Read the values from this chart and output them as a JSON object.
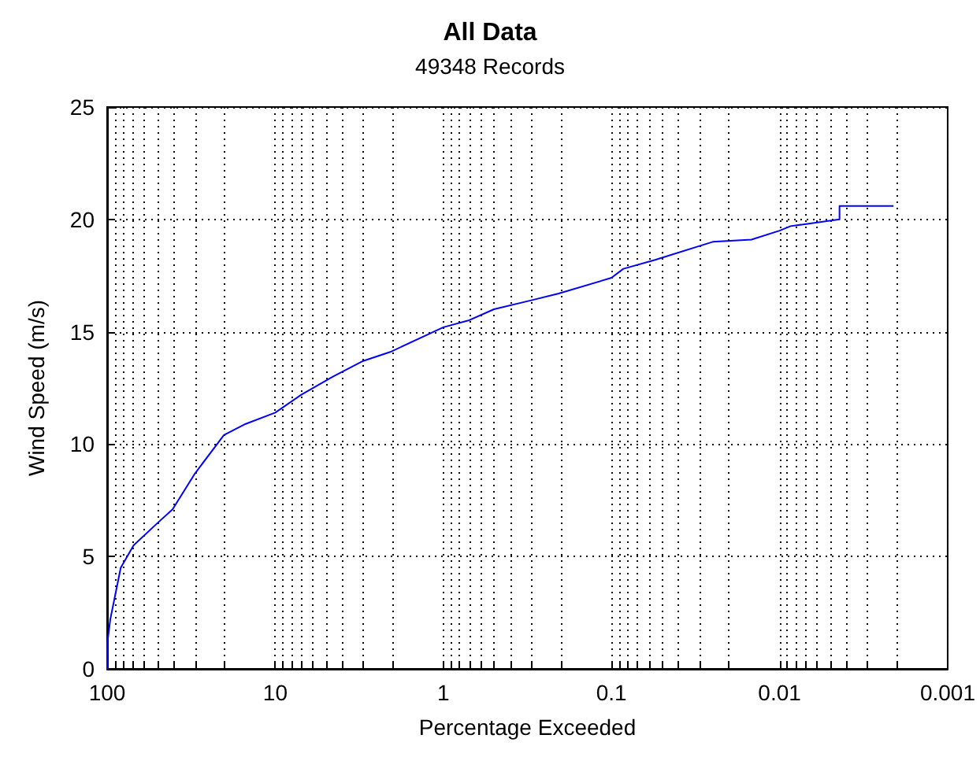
{
  "chart_data": {
    "type": "line",
    "title": "All Data",
    "subtitle": "49348 Records",
    "xlabel": "Percentage Exceeded",
    "ylabel": "Wind Speed (m/s)",
    "log": "x",
    "grid": true,
    "marker": "none",
    "line_style": "solid",
    "xlim": [
      100,
      0.001
    ],
    "ylim": [
      0,
      25
    ],
    "yticks": [
      0,
      5,
      10,
      15,
      20,
      25
    ],
    "xticks": [
      {
        "value": 100,
        "label": "100"
      },
      {
        "value": 90,
        "label": null
      },
      {
        "value": 80,
        "label": null
      },
      {
        "value": 70,
        "label": null
      },
      {
        "value": 60,
        "label": null
      },
      {
        "value": 50,
        "label": null
      },
      {
        "value": 40,
        "label": null
      },
      {
        "value": 30,
        "label": null
      },
      {
        "value": 20,
        "label": null
      },
      {
        "value": 10,
        "label": "10"
      },
      {
        "value": 9,
        "label": null
      },
      {
        "value": 8,
        "label": null
      },
      {
        "value": 7,
        "label": null
      },
      {
        "value": 6,
        "label": null
      },
      {
        "value": 5,
        "label": null
      },
      {
        "value": 4,
        "label": null
      },
      {
        "value": 3,
        "label": null
      },
      {
        "value": 2,
        "label": null
      },
      {
        "value": 1,
        "label": "1"
      },
      {
        "value": 0.9,
        "label": null
      },
      {
        "value": 0.8,
        "label": null
      },
      {
        "value": 0.7,
        "label": null
      },
      {
        "value": 0.6,
        "label": null
      },
      {
        "value": 0.5,
        "label": null
      },
      {
        "value": 0.4,
        "label": null
      },
      {
        "value": 0.3,
        "label": null
      },
      {
        "value": 0.2,
        "label": null
      },
      {
        "value": 0.1,
        "label": "0.1"
      },
      {
        "value": 0.09,
        "label": null
      },
      {
        "value": 0.08,
        "label": null
      },
      {
        "value": 0.07,
        "label": null
      },
      {
        "value": 0.06,
        "label": null
      },
      {
        "value": 0.05,
        "label": null
      },
      {
        "value": 0.04,
        "label": null
      },
      {
        "value": 0.03,
        "label": null
      },
      {
        "value": 0.02,
        "label": null
      },
      {
        "value": 0.01,
        "label": "0.01"
      },
      {
        "value": 0.009,
        "label": null
      },
      {
        "value": 0.008,
        "label": null
      },
      {
        "value": 0.007,
        "label": null
      },
      {
        "value": 0.006,
        "label": null
      },
      {
        "value": 0.005,
        "label": null
      },
      {
        "value": 0.004,
        "label": null
      },
      {
        "value": 0.003,
        "label": null
      },
      {
        "value": 0.002,
        "label": null
      },
      {
        "value": 0.001,
        "label": "0.001"
      }
    ],
    "series": [
      {
        "color": "#0000ff",
        "x": [
          100,
          99.5,
          95.8,
          83,
          69.6,
          50,
          40.8,
          30,
          20.2,
          15,
          10,
          7,
          4.54,
          3,
          2.07,
          1,
          0.71,
          0.5,
          0.3,
          0.206,
          0.1,
          0.085,
          0.055,
          0.025,
          0.0147,
          0.01,
          0.0086,
          0.0044,
          0.0044,
          0.0021
        ],
        "values": [
          0,
          1.2,
          2.2,
          4.5,
          5.5,
          6.5,
          7.1,
          8.7,
          10.4,
          10.9,
          11.4,
          12.2,
          13.0,
          13.7,
          14.1,
          15.2,
          15.5,
          16.0,
          16.4,
          16.7,
          17.4,
          17.8,
          18.2,
          19.0,
          19.1,
          19.5,
          19.7,
          20.0,
          20.6,
          20.6
        ]
      }
    ]
  }
}
